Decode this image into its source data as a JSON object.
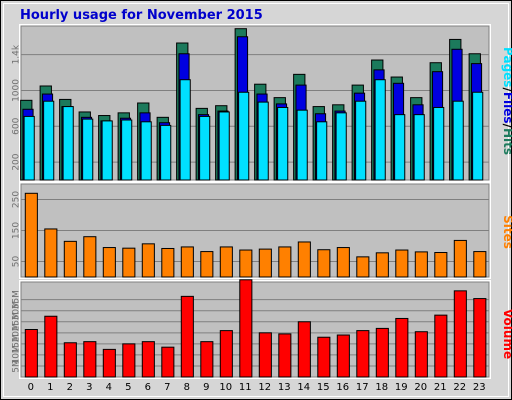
{
  "title": "Hourly usage for November 2015",
  "colors": {
    "background": "#ffffff",
    "frame_bg": "#d6d6d6",
    "panel_bg": "#c0c0c0",
    "grid": "#7f7f7f",
    "title": "#0000cc",
    "hits": "#1c7a5c",
    "files": "#0000e0",
    "pages": "#00e0ff",
    "sites": "#ff8000",
    "volume": "#ff0000",
    "bar_edge": "#000000"
  },
  "legend": {
    "pages": "Pages",
    "sep1": "/",
    "files": "Files",
    "sep2": "/",
    "hits": "Hits",
    "sites": "Sites",
    "volume": "Volume"
  },
  "chart_data": [
    {
      "type": "bar",
      "title": "Hourly usage for November 2015",
      "categories": [
        "0",
        "1",
        "2",
        "3",
        "4",
        "5",
        "6",
        "7",
        "8",
        "9",
        "10",
        "11",
        "12",
        "13",
        "14",
        "15",
        "16",
        "17",
        "18",
        "19",
        "20",
        "21",
        "22",
        "23"
      ],
      "yticks": [
        "200",
        "600",
        "1000",
        "1.4k"
      ],
      "ylim": [
        0,
        1720
      ],
      "series": [
        {
          "name": "Hits",
          "values": [
            890,
            1050,
            900,
            760,
            720,
            750,
            860,
            700,
            1530,
            800,
            830,
            1690,
            1070,
            920,
            1180,
            820,
            840,
            1060,
            1340,
            1150,
            920,
            1310,
            1570,
            1410
          ]
        },
        {
          "name": "Files",
          "values": [
            790,
            960,
            820,
            700,
            660,
            690,
            750,
            640,
            1410,
            730,
            770,
            1600,
            960,
            850,
            1060,
            740,
            770,
            970,
            1230,
            1080,
            840,
            1210,
            1460,
            1300
          ]
        },
        {
          "name": "Pages",
          "values": [
            710,
            880,
            820,
            680,
            660,
            670,
            650,
            610,
            1120,
            710,
            760,
            980,
            870,
            810,
            780,
            650,
            750,
            880,
            1120,
            730,
            730,
            810,
            880,
            980
          ]
        }
      ]
    },
    {
      "type": "bar",
      "categories": [
        "0",
        "1",
        "2",
        "3",
        "4",
        "5",
        "6",
        "7",
        "8",
        "9",
        "10",
        "11",
        "12",
        "13",
        "14",
        "15",
        "16",
        "17",
        "18",
        "19",
        "20",
        "21",
        "22",
        "23"
      ],
      "yticks": [
        "50",
        "150",
        "250"
      ],
      "ylim": [
        0,
        300
      ],
      "series": [
        {
          "name": "Sites",
          "values": [
            270,
            155,
            115,
            130,
            95,
            93,
            107,
            92,
            97,
            82,
            97,
            87,
            90,
            97,
            113,
            88,
            95,
            65,
            78,
            87,
            81,
            79,
            118,
            82
          ]
        }
      ]
    },
    {
      "type": "bar",
      "categories": [
        "0",
        "1",
        "2",
        "3",
        "4",
        "5",
        "6",
        "7",
        "8",
        "9",
        "10",
        "11",
        "12",
        "13",
        "14",
        "15",
        "16",
        "17",
        "18",
        "19",
        "20",
        "21",
        "22",
        "23"
      ],
      "yticks": [
        "5M",
        "10M",
        "15M",
        "20M",
        "25M",
        "30M",
        "35M"
      ],
      "ylim": [
        0,
        43
      ],
      "series": [
        {
          "name": "Volume",
          "values": [
            21.5,
            27.5,
            15.5,
            16,
            12.5,
            15,
            16,
            13.5,
            36.5,
            16,
            21,
            44,
            20,
            19.5,
            25,
            18,
            19,
            21,
            22,
            26.5,
            20.5,
            28,
            39,
            35.5
          ]
        }
      ]
    }
  ]
}
